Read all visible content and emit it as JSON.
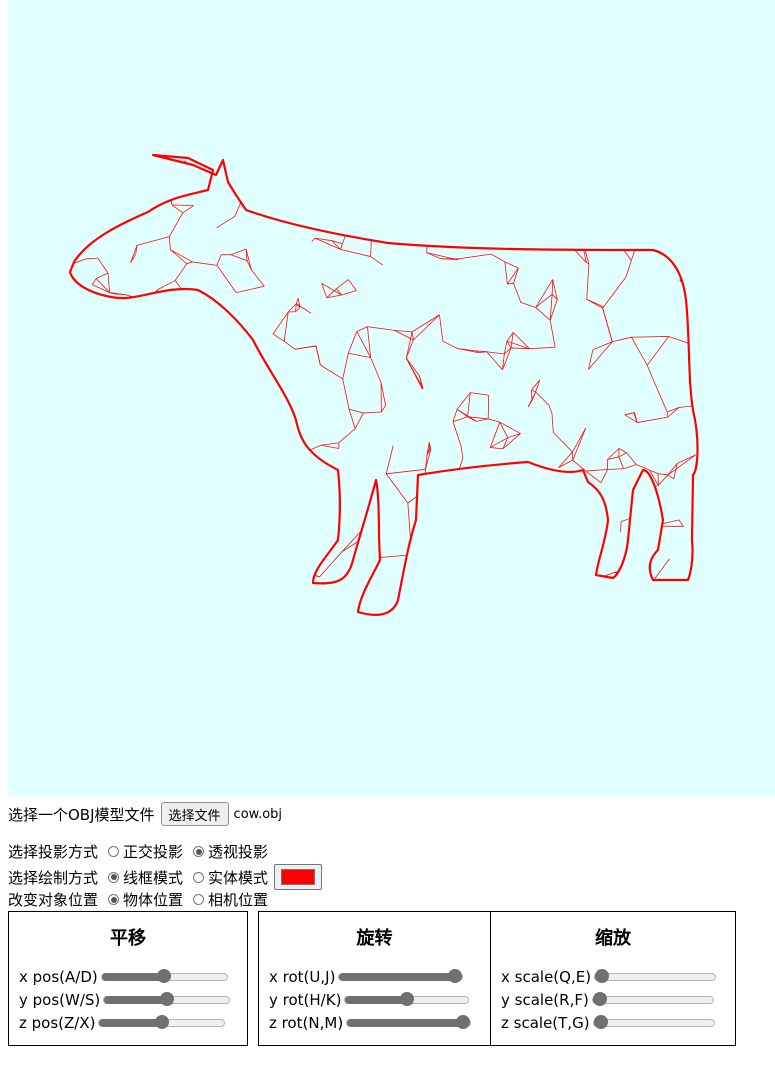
{
  "colors": {
    "canvas_bg": "#e0ffff",
    "wire": "#ff0000",
    "draw_color": "#ff0000"
  },
  "file": {
    "label": "选择一个OBJ模型文件",
    "button": "选择文件",
    "filename": "cow.obj"
  },
  "projection": {
    "label": "选择投影方式",
    "options": [
      "正交投影",
      "透视投影"
    ],
    "selected": 1
  },
  "draw_mode": {
    "label": "选择绘制方式",
    "options": [
      "线框模式",
      "实体模式"
    ],
    "selected": 0
  },
  "target": {
    "label": "改变对象位置",
    "options": [
      "物体位置",
      "相机位置"
    ],
    "selected": 0
  },
  "panels": {
    "translate": {
      "title": "平移",
      "sliders": [
        {
          "label": "x pos(A/D)",
          "value": 0.5
        },
        {
          "label": "y pos(W/S)",
          "value": 0.5
        },
        {
          "label": "z pos(Z/X)",
          "value": 0.5
        }
      ]
    },
    "rotate": {
      "title": "旋转",
      "sliders": [
        {
          "label": "x rot(U,J)",
          "value": 1.0
        },
        {
          "label": "y rot(H/K)",
          "value": 0.5
        },
        {
          "label": "z rot(N,M)",
          "value": 1.0
        }
      ]
    },
    "scale": {
      "title": "缩放",
      "sliders": [
        {
          "label": "x scale(Q,E)",
          "value": 0.0
        },
        {
          "label": "y scale(R,F)",
          "value": 0.0
        },
        {
          "label": "z scale(T,G)",
          "value": 0.0
        }
      ]
    }
  }
}
